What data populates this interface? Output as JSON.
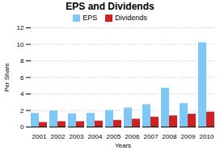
{
  "chart_data": {
    "type": "bar",
    "title": "EPS and Dividends",
    "xlabel": "Years",
    "ylabel": "Per Share",
    "categories": [
      "2001",
      "2002",
      "2003",
      "2004",
      "2005",
      "2006",
      "2007",
      "2008",
      "2009",
      "2010"
    ],
    "series": [
      {
        "name": "EPS",
        "color": "#7ec8f8",
        "values": [
          1.65,
          1.95,
          1.6,
          1.65,
          2.0,
          2.3,
          2.7,
          4.7,
          2.85,
          10.2
        ]
      },
      {
        "name": "Dividends",
        "color": "#cc2222",
        "values": [
          0.55,
          0.65,
          0.65,
          0.72,
          0.8,
          0.95,
          1.2,
          1.35,
          1.55,
          1.8
        ]
      }
    ],
    "ylim": [
      0,
      12
    ],
    "yticks": [
      0,
      2,
      4,
      6,
      8,
      10,
      12
    ],
    "grid": true,
    "legend": "top"
  }
}
